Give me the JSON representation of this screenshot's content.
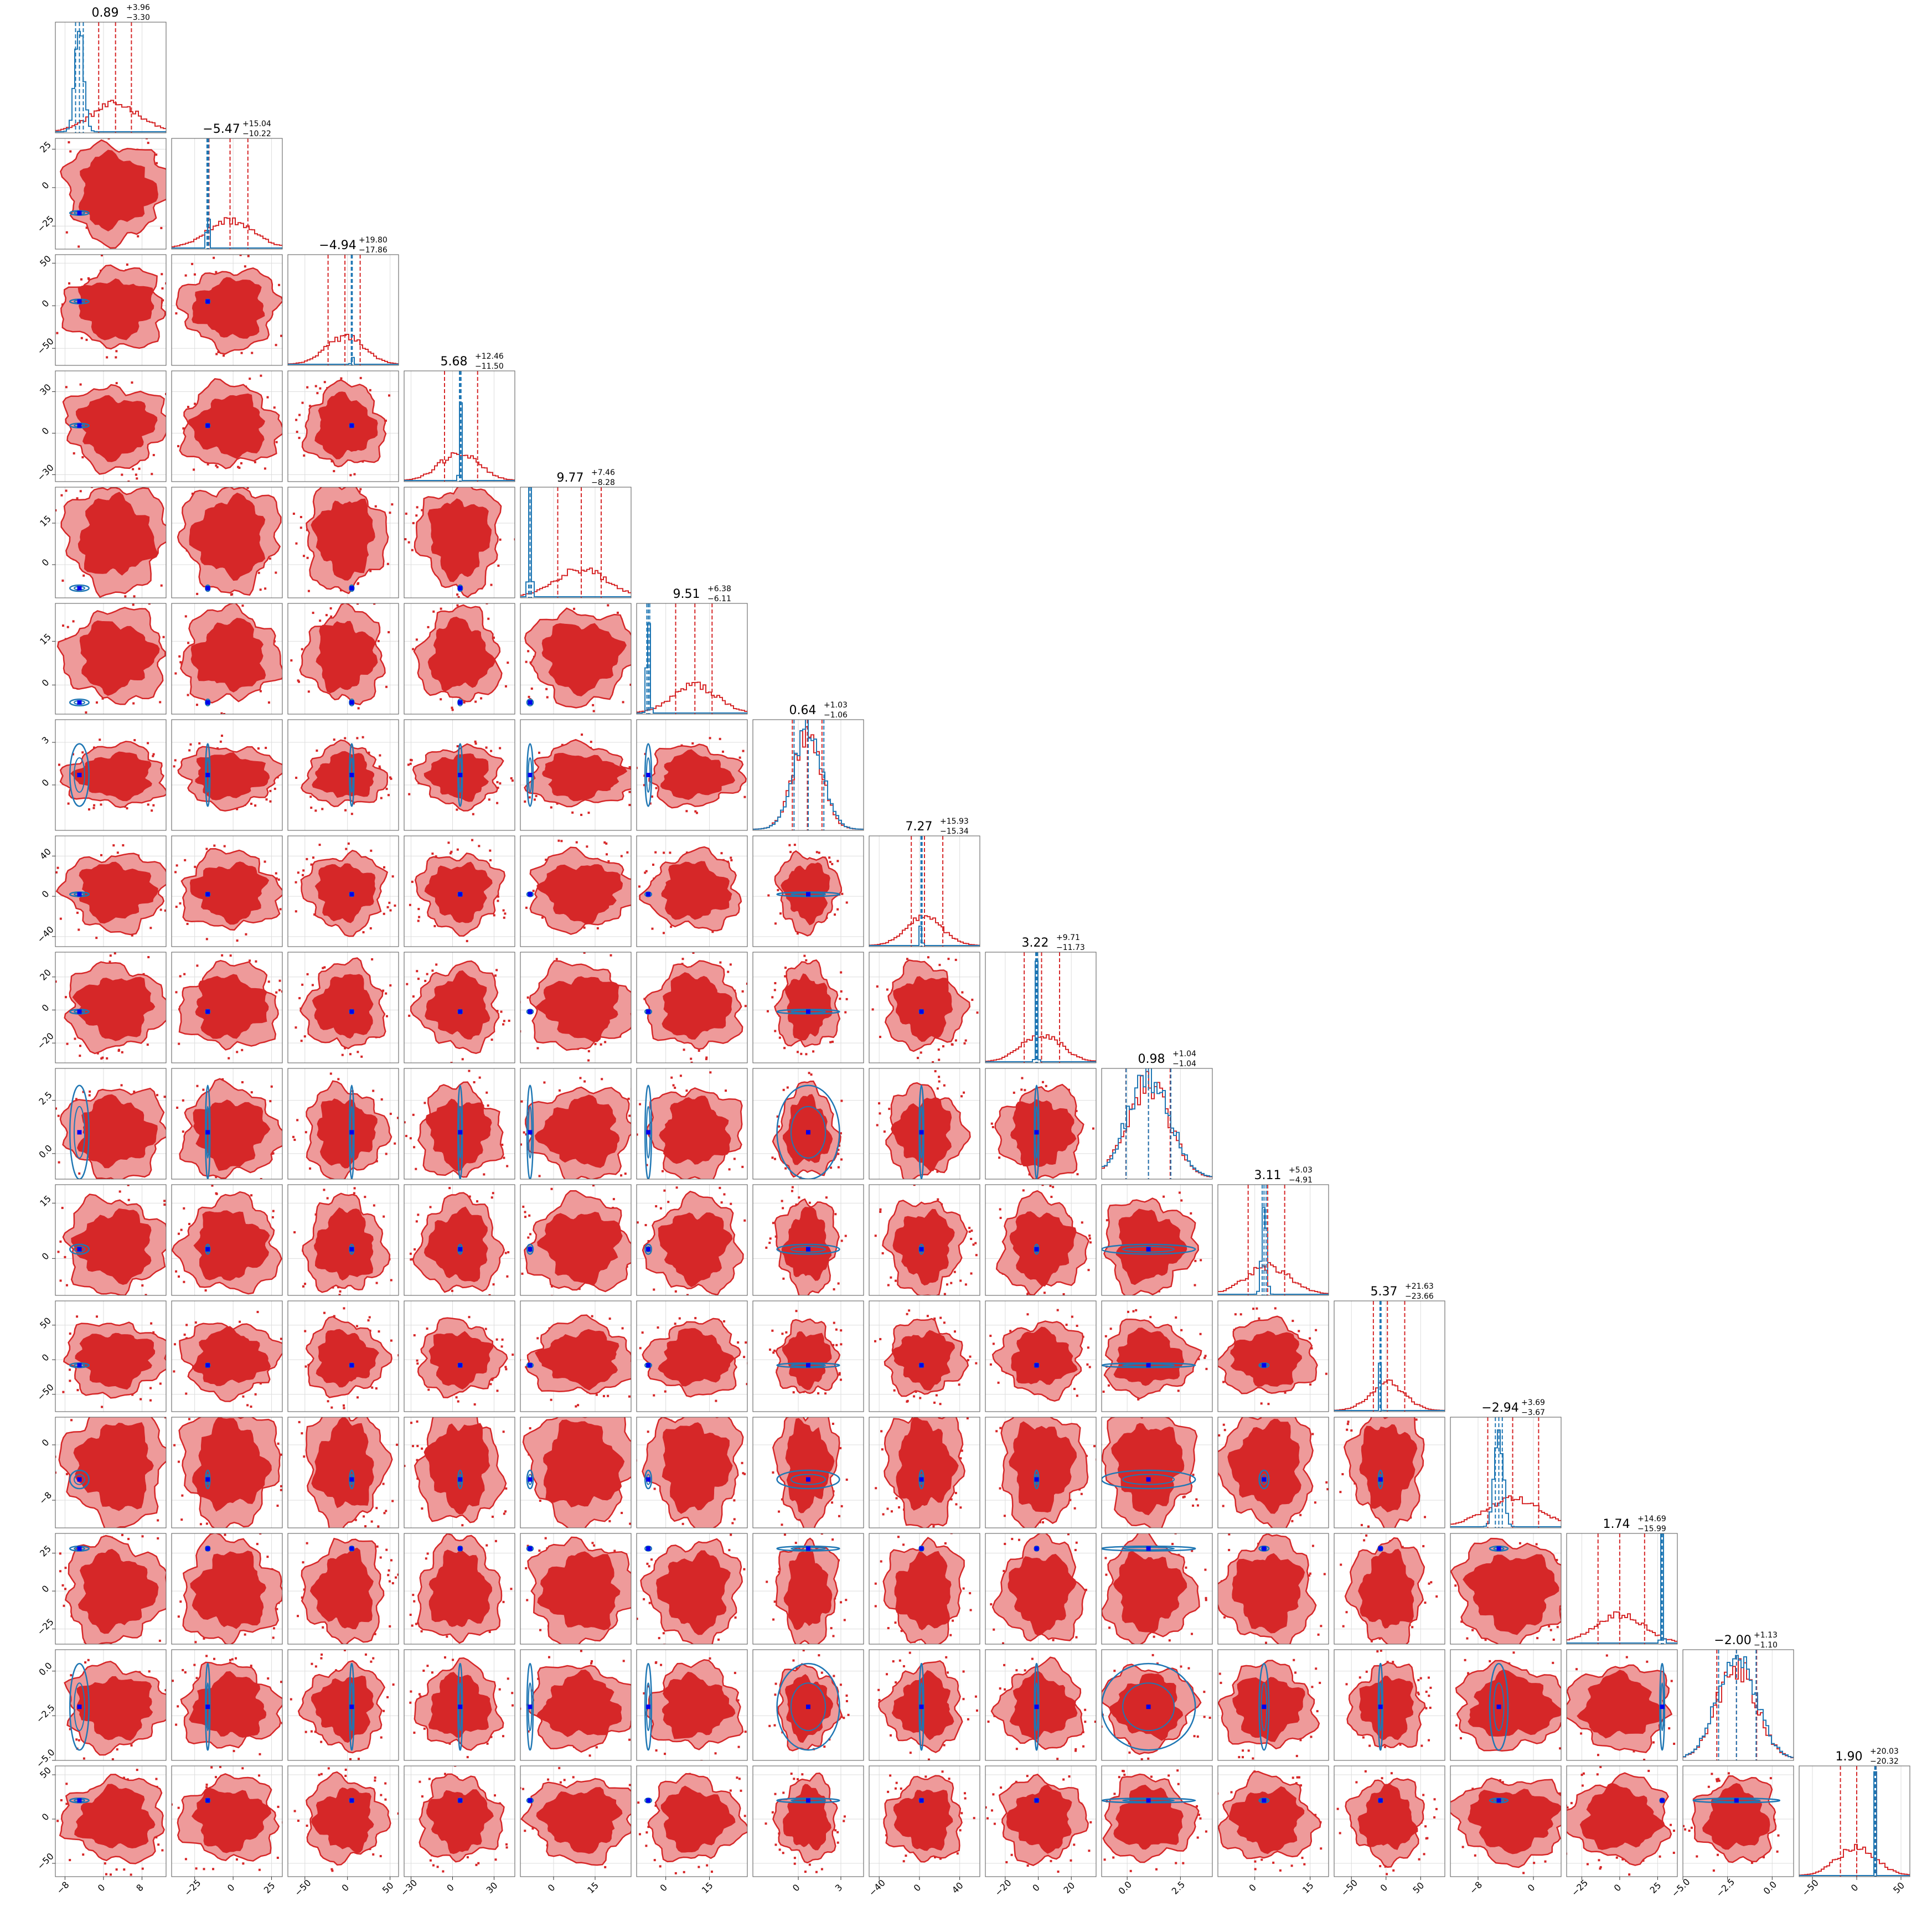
{
  "chart_data": {
    "type": "corner",
    "n_params": 16,
    "series": [
      {
        "name": "",
        "color": "#d62728",
        "fill_dark": "#d62728",
        "fill_light": "#ee9a9a"
      },
      {
        "name": "",
        "color": "#1f77b4"
      }
    ],
    "params": [
      {
        "median": 0.89,
        "plus": "3.96",
        "minus": "3.30",
        "range": [
          -10,
          13
        ],
        "ticks": [
          "−8",
          "0",
          "8"
        ],
        "red": {
          "mean": 2.5,
          "sd": 5.0,
          "q": [
            -1.0,
            5.8
          ]
        },
        "blue": {
          "mean": -5.0,
          "sd": 0.9,
          "q": [
            -5.8,
            -4.2
          ]
        }
      },
      {
        "median": -5.47,
        "plus": "15.04",
        "minus": "10.22",
        "range": [
          -40,
          32
        ],
        "ticks": [
          "−25",
          "0",
          "25"
        ],
        "red": {
          "mean": -2.0,
          "sd": 15.0,
          "q": [
            -15.7,
            9.6
          ]
        },
        "blue": {
          "mean": -16.5,
          "sd": 0.5,
          "q": [
            -17.0,
            -16.0
          ]
        }
      },
      {
        "median": -4.94,
        "plus": "19.80",
        "minus": "17.86",
        "range": [
          -70,
          60
        ],
        "ticks": [
          "−50",
          "0",
          "50"
        ],
        "red": {
          "mean": -3.0,
          "sd": 22.0,
          "q": [
            -22.8,
            14.9
          ]
        },
        "blue": {
          "mean": 5.0,
          "sd": 0.6,
          "q": [
            4.5,
            5.6
          ]
        }
      },
      {
        "median": 5.68,
        "plus": "12.46",
        "minus": "11.50",
        "range": [
          -35,
          45
        ],
        "ticks": [
          "−30",
          "0",
          "30"
        ],
        "red": {
          "mean": 5.0,
          "sd": 14.0,
          "q": [
            -5.8,
            18.1
          ]
        },
        "blue": {
          "mean": 5.5,
          "sd": 0.6,
          "q": [
            5.0,
            6.1
          ]
        }
      },
      {
        "median": 9.77,
        "plus": "7.46",
        "minus": "8.28",
        "range": [
          -12,
          28
        ],
        "ticks": [
          "0",
          "15"
        ],
        "red": {
          "mean": 10.0,
          "sd": 9.0,
          "q": [
            1.5,
            17.2
          ]
        },
        "blue": {
          "mean": -8.5,
          "sd": 0.5,
          "q": [
            -9.0,
            -8.0
          ]
        }
      },
      {
        "median": 9.51,
        "plus": "6.38",
        "minus": "6.11",
        "range": [
          -10,
          28
        ],
        "ticks": [
          "0",
          "15"
        ],
        "red": {
          "mean": 10.0,
          "sd": 7.5,
          "q": [
            3.4,
            15.9
          ]
        },
        "blue": {
          "mean": -6.0,
          "sd": 0.5,
          "q": [
            -6.5,
            -5.5
          ]
        }
      },
      {
        "median": 0.64,
        "plus": "1.03",
        "minus": "1.06",
        "range": [
          -3.2,
          4.6
        ],
        "ticks": [
          "0",
          "3"
        ],
        "red": {
          "mean": 0.64,
          "sd": 1.0,
          "q": [
            -0.42,
            1.67
          ]
        },
        "blue": {
          "mean": 0.7,
          "sd": 1.0,
          "q": [
            -0.3,
            1.8
          ]
        }
      },
      {
        "median": 7.27,
        "plus": "15.93",
        "minus": "15.34",
        "range": [
          -50,
          60
        ],
        "ticks": [
          "−40",
          "0",
          "40"
        ],
        "red": {
          "mean": 5.0,
          "sd": 18.0,
          "q": [
            -8.1,
            23.2
          ]
        },
        "blue": {
          "mean": 2.0,
          "sd": 0.6,
          "q": [
            1.5,
            2.6
          ]
        }
      },
      {
        "median": 3.22,
        "plus": "9.71",
        "minus": "11.73",
        "range": [
          -32,
          35
        ],
        "ticks": [
          "−20",
          "0",
          "20"
        ],
        "red": {
          "mean": 2.0,
          "sd": 12.0,
          "q": [
            -8.5,
            12.9
          ]
        },
        "blue": {
          "mean": -1.0,
          "sd": 0.6,
          "q": [
            -1.5,
            -0.4
          ]
        }
      },
      {
        "median": 0.98,
        "plus": "1.04",
        "minus": "1.04",
        "range": [
          -1.2,
          4.0
        ],
        "ticks": [
          "0.0",
          "2.5"
        ],
        "red": {
          "mean": 1.0,
          "sd": 1.0,
          "q": [
            -0.06,
            2.02
          ]
        },
        "blue": {
          "mean": 1.0,
          "sd": 1.0,
          "q": [
            -0.05,
            2.05
          ]
        }
      },
      {
        "median": 3.11,
        "plus": "5.03",
        "minus": "4.91",
        "range": [
          -10,
          20
        ],
        "ticks": [
          "0",
          "15"
        ],
        "red": {
          "mean": 3.5,
          "sd": 6.0,
          "q": [
            -1.8,
            8.1
          ]
        },
        "blue": {
          "mean": 2.5,
          "sd": 0.6,
          "q": [
            2.0,
            3.1
          ]
        }
      },
      {
        "median": 5.37,
        "plus": "21.63",
        "minus": "23.66",
        "range": [
          -75,
          85
        ],
        "ticks": [
          "−50",
          "0",
          "50"
        ],
        "red": {
          "mean": 2.0,
          "sd": 25.0,
          "q": [
            -18.3,
            27.0
          ]
        },
        "blue": {
          "mean": -8.0,
          "sd": 0.8,
          "q": [
            -8.7,
            -7.2
          ]
        }
      },
      {
        "median": -2.94,
        "plus": "3.69",
        "minus": "3.67",
        "range": [
          -12,
          4
        ],
        "ticks": [
          "−8",
          "0"
        ],
        "red": {
          "mean": -3.0,
          "sd": 4.0,
          "q": [
            -6.6,
            0.75
          ]
        },
        "blue": {
          "mean": -5.0,
          "sd": 0.6,
          "q": [
            -5.5,
            -4.5
          ]
        }
      },
      {
        "median": 1.74,
        "plus": "14.69",
        "minus": "15.99",
        "range": [
          -35,
          38
        ],
        "ticks": [
          "−25",
          "0",
          "25"
        ],
        "red": {
          "mean": 0.0,
          "sd": 16.0,
          "q": [
            -14.3,
            16.4
          ]
        },
        "blue": {
          "mean": 28.0,
          "sd": 0.7,
          "q": [
            27.4,
            28.8
          ]
        }
      },
      {
        "median": -2.0,
        "plus": "1.13",
        "minus": "1.10",
        "range": [
          -5.0,
          1.2
        ],
        "ticks": [
          "−5.0",
          "−2.5",
          "0.0"
        ],
        "red": {
          "mean": -2.0,
          "sd": 1.1,
          "q": [
            -3.1,
            -0.87
          ]
        },
        "blue": {
          "mean": -2.0,
          "sd": 1.1,
          "q": [
            -3.0,
            -0.9
          ]
        }
      },
      {
        "median": 1.9,
        "plus": "20.03",
        "minus": "20.32",
        "range": [
          -65,
          60
        ],
        "ticks": [
          "−50",
          "0",
          "50"
        ],
        "red": {
          "mean": 0.0,
          "sd": 22.0,
          "q": [
            -18.4,
            21.9
          ]
        },
        "blue": {
          "mean": 21.0,
          "sd": 0.7,
          "q": [
            20.4,
            21.7
          ]
        }
      }
    ]
  }
}
